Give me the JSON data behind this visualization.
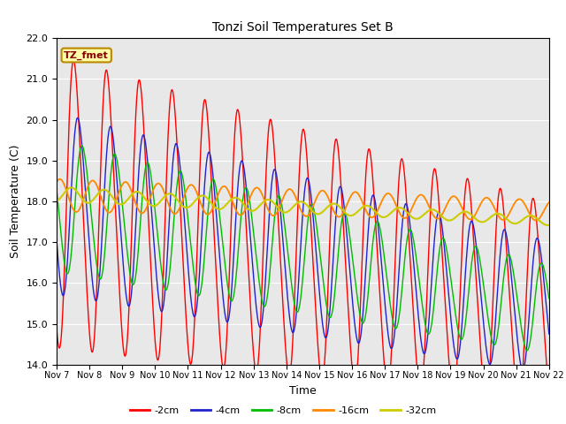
{
  "title": "Tonzi Soil Temperatures Set B",
  "xlabel": "Time",
  "ylabel": "Soil Temperature (C)",
  "ylim": [
    14.0,
    22.0
  ],
  "yticks": [
    14.0,
    15.0,
    16.0,
    17.0,
    18.0,
    19.0,
    20.0,
    21.0,
    22.0
  ],
  "annotation_label": "TZ_fmet",
  "annotation_bg": "#FFFFAA",
  "annotation_border": "#BB8800",
  "legend_entries": [
    "-2cm",
    "-4cm",
    "-8cm",
    "-16cm",
    "-32cm"
  ],
  "line_colors": [
    "#FF0000",
    "#2222CC",
    "#00BB00",
    "#FF8800",
    "#CCCC00"
  ],
  "background_color": "#E8E8E8",
  "fig_bg": "#FFFFFF",
  "num_days": 15
}
